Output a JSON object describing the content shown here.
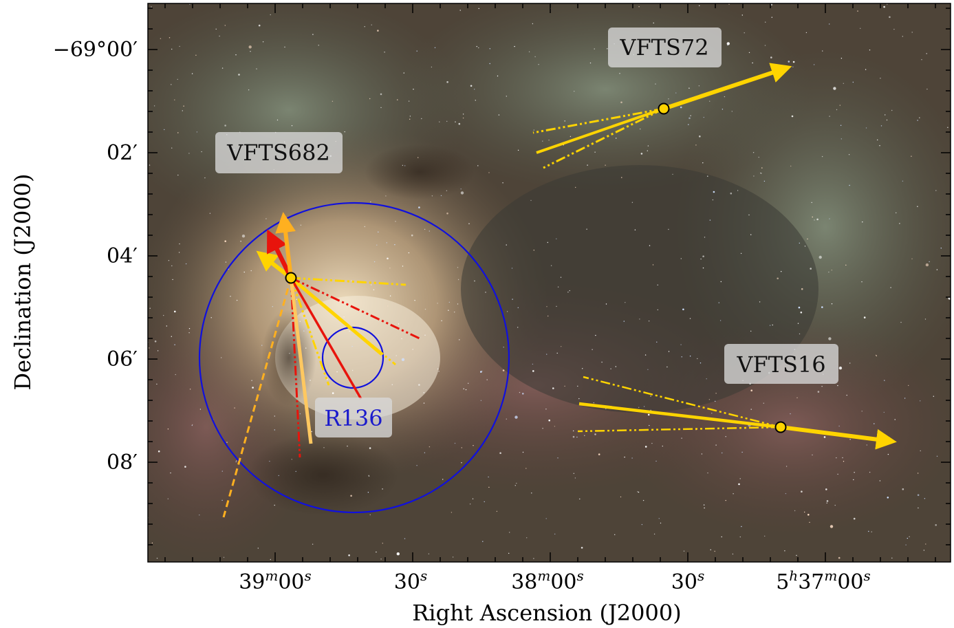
{
  "axes": {
    "xlabel": "Right Ascension (J2000)",
    "ylabel": "Declination (J2000)",
    "x_ticks": [
      {
        "main": "39",
        "sup1": "m",
        "mid": "00",
        "sup2": "s"
      },
      {
        "main": "30",
        "sup1": "",
        "mid": "",
        "sup2": "s"
      },
      {
        "main": "38",
        "sup1": "m",
        "mid": "00",
        "sup2": "s"
      },
      {
        "main": "30",
        "sup1": "",
        "mid": "",
        "sup2": "s"
      },
      {
        "main": "5",
        "sup1": "h",
        "mid": "37",
        "sup2": "m",
        "tail": "00",
        "sup3": "s"
      }
    ],
    "y_ticks": [
      "−69°00′",
      "02′",
      "04′",
      "06′",
      "08′"
    ]
  },
  "labels": {
    "vfts72": "VFTS72",
    "vfts682": "VFTS682",
    "vfts16": "VFTS16",
    "r136": "R136"
  },
  "colors": {
    "circle": "#1010dd",
    "yellow": "#ffd400",
    "orange": "#ffb020",
    "red": "#e8140c",
    "label_bg": "#d8d8d8"
  }
}
